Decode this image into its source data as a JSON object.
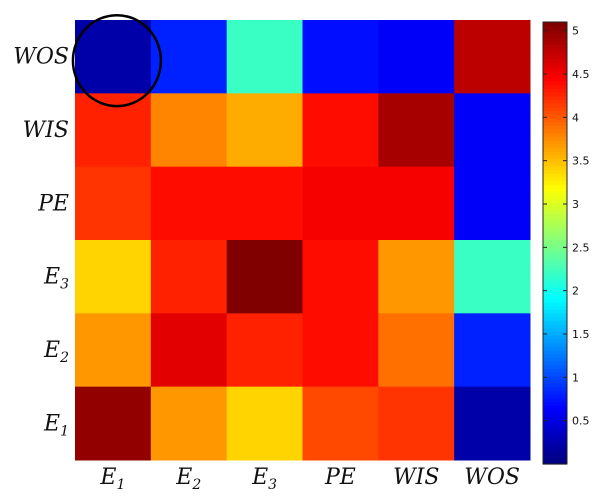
{
  "chart_data": {
    "type": "heatmap",
    "title": "",
    "xlabel": "",
    "ylabel": "",
    "x_categories": [
      {
        "main": "E",
        "sub": "1"
      },
      {
        "main": "E",
        "sub": "2"
      },
      {
        "main": "E",
        "sub": "3"
      },
      {
        "main": "PE",
        "sub": ""
      },
      {
        "main": "WIS",
        "sub": ""
      },
      {
        "main": "WOS",
        "sub": ""
      }
    ],
    "y_categories_top_to_bottom": [
      {
        "main": "WOS",
        "sub": ""
      },
      {
        "main": "WIS",
        "sub": ""
      },
      {
        "main": "PE",
        "sub": ""
      },
      {
        "main": "E",
        "sub": "3"
      },
      {
        "main": "E",
        "sub": "2"
      },
      {
        "main": "E",
        "sub": "1"
      }
    ],
    "values_rows_top_to_bottom": [
      [
        0.2,
        0.8,
        2.2,
        0.7,
        0.6,
        4.8
      ],
      [
        4.3,
        3.8,
        3.6,
        4.4,
        4.9,
        0.6
      ],
      [
        4.2,
        4.4,
        4.4,
        4.5,
        4.5,
        0.6
      ],
      [
        3.4,
        4.3,
        5.1,
        4.4,
        3.7,
        2.2
      ],
      [
        3.7,
        4.6,
        4.3,
        4.4,
        3.9,
        0.8
      ],
      [
        5.0,
        3.7,
        3.4,
        4.1,
        4.2,
        0.2
      ]
    ],
    "color_range": [
      0,
      5.1
    ],
    "colormap": "jet",
    "colorbar": {
      "ticks": [
        0.5,
        1,
        1.5,
        2,
        2.5,
        3,
        3.5,
        4,
        4.5,
        5
      ],
      "tick_labels": [
        "0.5",
        "1",
        "1.5",
        "2",
        "2.5",
        "3",
        "3.5",
        "4",
        "4.5",
        "5"
      ],
      "placement": "right"
    },
    "annotation": {
      "shape": "circle",
      "around_cell": {
        "row": 0,
        "col": 0
      }
    },
    "grid": false
  }
}
